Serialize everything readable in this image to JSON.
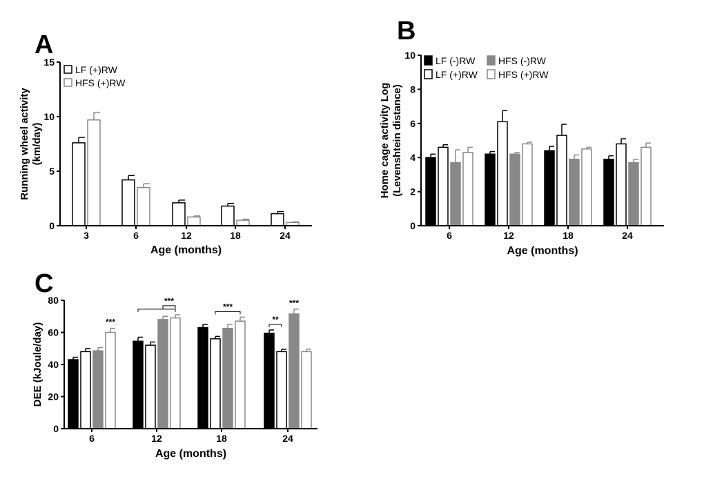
{
  "figure": {
    "panels": [
      "A",
      "B",
      "C"
    ]
  },
  "chart_data": [
    {
      "panel": "A",
      "type": "bar",
      "title": "",
      "xlabel": "Age (months)",
      "ylabel_lines": [
        "Running wheel activity",
        "(km/day)"
      ],
      "ylim": [
        0,
        15
      ],
      "yticks": [
        "0",
        "5",
        "10",
        "15"
      ],
      "categories": [
        "3",
        "6",
        "12",
        "18",
        "24"
      ],
      "legend_position": "top-left",
      "series": [
        {
          "name": "LF (+)RW",
          "color": "#ffffff",
          "stroke": "#000000",
          "values": [
            7.6,
            4.2,
            2.1,
            1.8,
            1.1
          ],
          "errors": [
            0.5,
            0.4,
            0.25,
            0.25,
            0.2
          ]
        },
        {
          "name": "HFS (+)RW",
          "color": "#ffffff",
          "stroke": "#888888",
          "values": [
            9.7,
            3.5,
            0.8,
            0.5,
            0.3
          ],
          "errors": [
            0.7,
            0.35,
            0.1,
            0.1,
            0.06
          ]
        }
      ]
    },
    {
      "panel": "B",
      "type": "bar",
      "title": "",
      "xlabel": "Age (months)",
      "ylabel_lines": [
        "Home cage activity Log",
        "(Levenshtein distance)"
      ],
      "ylim": [
        0,
        10
      ],
      "yticks": [
        "0",
        "2",
        "4",
        "6",
        "8",
        "10"
      ],
      "categories": [
        "6",
        "12",
        "18",
        "24"
      ],
      "legend_position": "top",
      "series": [
        {
          "name": "LF (-)RW",
          "color": "#000000",
          "stroke": "#000000",
          "values": [
            4.0,
            4.2,
            4.4,
            3.9
          ],
          "errors": [
            0.2,
            0.15,
            0.25,
            0.2
          ]
        },
        {
          "name": "LF (+)RW",
          "color": "#ffffff",
          "stroke": "#000000",
          "values": [
            4.6,
            6.1,
            5.3,
            4.8
          ],
          "errors": [
            0.15,
            0.65,
            0.65,
            0.3
          ]
        },
        {
          "name": "HFS (-)RW",
          "color": "#888888",
          "stroke": "#888888",
          "values": [
            3.7,
            4.2,
            3.9,
            3.7
          ],
          "errors": [
            0.75,
            0.1,
            0.25,
            0.2
          ]
        },
        {
          "name": "HFS (+)RW",
          "color": "#ffffff",
          "stroke": "#888888",
          "values": [
            4.3,
            4.8,
            4.5,
            4.6
          ],
          "errors": [
            0.3,
            0.1,
            0.1,
            0.25
          ]
        }
      ]
    },
    {
      "panel": "C",
      "type": "bar",
      "title": "",
      "xlabel": "Age (months)",
      "ylabel": "DEE (kJoule/day)",
      "ylim": [
        0,
        80
      ],
      "yticks": [
        "0",
        "20",
        "40",
        "60",
        "80"
      ],
      "categories": [
        "6",
        "12",
        "18",
        "24"
      ],
      "series": [
        {
          "name": "LF (-)RW",
          "color": "#000000",
          "stroke": "#000000",
          "values": [
            43,
            54.5,
            63,
            59.5
          ],
          "errors": [
            1.5,
            2.5,
            2.0,
            2.0
          ]
        },
        {
          "name": "LF (+)RW",
          "color": "#ffffff",
          "stroke": "#000000",
          "values": [
            48,
            52,
            56,
            48
          ],
          "errors": [
            2.0,
            2.0,
            1.5,
            1.5
          ]
        },
        {
          "name": "HFS (-)RW",
          "color": "#888888",
          "stroke": "#888888",
          "values": [
            48.5,
            68,
            62.5,
            71.5
          ],
          "errors": [
            2.0,
            2.0,
            2.5,
            3.0
          ]
        },
        {
          "name": "HFS (+)RW",
          "color": "#ffffff",
          "stroke": "#888888",
          "values": [
            60,
            69,
            67,
            48
          ],
          "errors": [
            2.5,
            2.0,
            2.5,
            1.5
          ]
        }
      ],
      "annotations": [
        {
          "text": "***",
          "category": 0,
          "series": 3,
          "bracket": false
        },
        {
          "text": "***",
          "category": 1,
          "bracket": true,
          "from_series": 0,
          "to_series": 3,
          "nested": [
            2,
            3
          ]
        },
        {
          "text": "***",
          "category": 2,
          "bracket": true,
          "from_series": 1,
          "to_series": 3
        },
        {
          "text": "**",
          "category": 3,
          "bracket": true,
          "from_series": 0,
          "to_series": 1
        },
        {
          "text": "***",
          "category": 3,
          "series": 2,
          "bracket": false
        }
      ]
    }
  ]
}
